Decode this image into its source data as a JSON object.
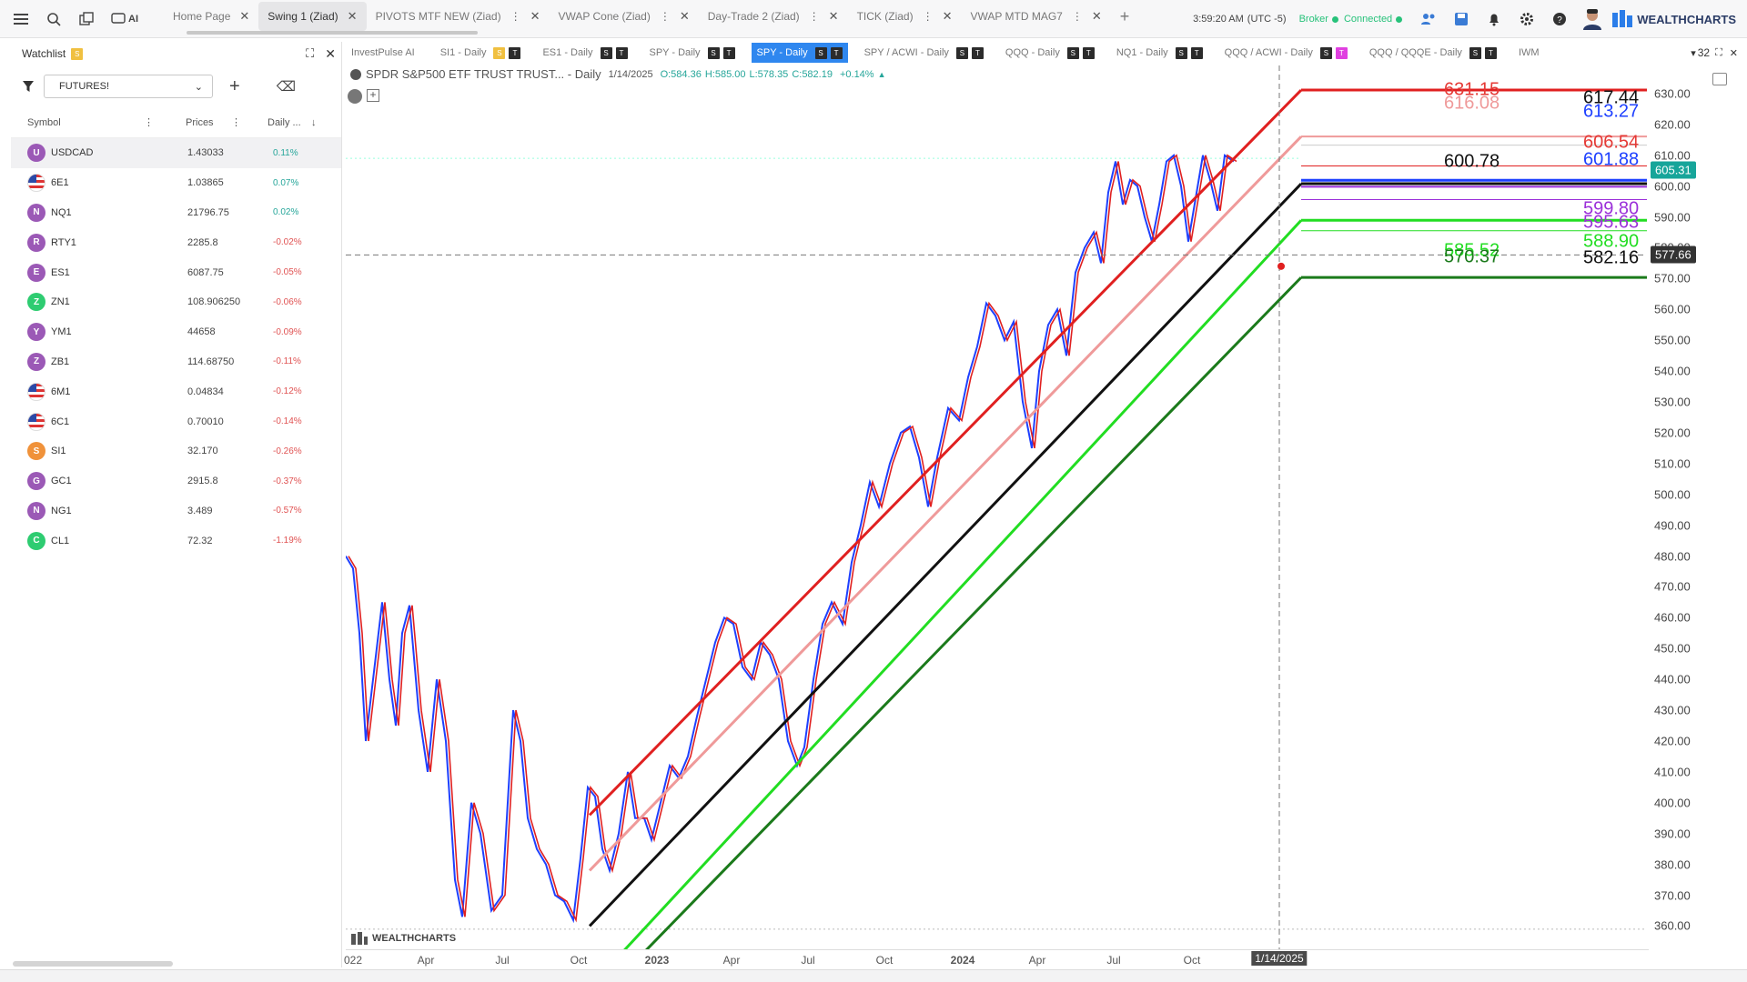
{
  "topbar": {
    "tabs": [
      {
        "label": "Home Page"
      },
      {
        "label": "Swing 1 (Ziad)"
      },
      {
        "label": "PIVOTS MTF NEW (Ziad)"
      },
      {
        "label": "VWAP Cone (Ziad)"
      },
      {
        "label": "Day-Trade 2 (Ziad)"
      },
      {
        "label": "TICK (Ziad)"
      },
      {
        "label": "VWAP MTD MAG7"
      }
    ],
    "ai_label": "AI",
    "time": "3:59:20 AM",
    "timezone": "(UTC -5)",
    "broker_label": "Broker",
    "connected_label": "Connected",
    "brand": "WEALTHCHARTS"
  },
  "watchlist": {
    "title": "Watchlist",
    "badge": "S",
    "filter_value": "FUTURES!",
    "columns": {
      "symbol": "Symbol",
      "prices": "Prices",
      "daily": "Daily ..."
    },
    "rows": [
      {
        "letter": "U",
        "color": "#9b59b6",
        "symbol": "USDCAD",
        "price": "1.43033",
        "change": "0.11%",
        "dir": "pos"
      },
      {
        "letter": "",
        "color": "flag",
        "symbol": "6E1",
        "price": "1.03865",
        "change": "0.07%",
        "dir": "pos"
      },
      {
        "letter": "N",
        "color": "#9b59b6",
        "symbol": "NQ1",
        "price": "21796.75",
        "change": "0.02%",
        "dir": "pos"
      },
      {
        "letter": "R",
        "color": "#9b59b6",
        "symbol": "RTY1",
        "price": "2285.8",
        "change": "-0.02%",
        "dir": "neg"
      },
      {
        "letter": "E",
        "color": "#9b59b6",
        "symbol": "ES1",
        "price": "6087.75",
        "change": "-0.05%",
        "dir": "neg"
      },
      {
        "letter": "Z",
        "color": "#2ecc71",
        "symbol": "ZN1",
        "price": "108.906250",
        "change": "-0.06%",
        "dir": "neg"
      },
      {
        "letter": "Y",
        "color": "#9b59b6",
        "symbol": "YM1",
        "price": "44658",
        "change": "-0.09%",
        "dir": "neg"
      },
      {
        "letter": "Z",
        "color": "#9b59b6",
        "symbol": "ZB1",
        "price": "114.68750",
        "change": "-0.11%",
        "dir": "neg"
      },
      {
        "letter": "",
        "color": "flag",
        "symbol": "6M1",
        "price": "0.04834",
        "change": "-0.12%",
        "dir": "neg"
      },
      {
        "letter": "",
        "color": "flag",
        "symbol": "6C1",
        "price": "0.70010",
        "change": "-0.14%",
        "dir": "neg"
      },
      {
        "letter": "S",
        "color": "#f0923a",
        "symbol": "SI1",
        "price": "32.170",
        "change": "-0.26%",
        "dir": "neg"
      },
      {
        "letter": "G",
        "color": "#9b59b6",
        "symbol": "GC1",
        "price": "2915.8",
        "change": "-0.37%",
        "dir": "neg"
      },
      {
        "letter": "N",
        "color": "#9b59b6",
        "symbol": "NG1",
        "price": "3.489",
        "change": "-0.57%",
        "dir": "neg"
      },
      {
        "letter": "C",
        "color": "#2ecc71",
        "symbol": "CL1",
        "price": "72.32",
        "change": "-1.19%",
        "dir": "neg"
      }
    ]
  },
  "chart_tabs": [
    {
      "label": "InvestPulse AI",
      "marks": []
    },
    {
      "label": "SI1 - Daily",
      "marks": [
        "S",
        "T"
      ]
    },
    {
      "label": "ES1 - Daily",
      "marks": [
        "S",
        "T"
      ]
    },
    {
      "label": "SPY - Daily",
      "marks": [
        "S",
        "T"
      ]
    },
    {
      "label": "SPY - Daily",
      "marks": [
        "S",
        "T"
      ],
      "active": true
    },
    {
      "label": "SPY / ACWI - Daily",
      "marks": [
        "S",
        "T"
      ]
    },
    {
      "label": "QQQ - Daily",
      "marks": [
        "S",
        "T"
      ]
    },
    {
      "label": "NQ1 - Daily",
      "marks": [
        "S",
        "T"
      ]
    },
    {
      "label": "QQQ / ACWI - Daily",
      "marks": [
        "S",
        "T"
      ]
    },
    {
      "label": "QQQ / QQQE - Daily",
      "marks": [
        "S",
        "T"
      ]
    },
    {
      "label": "IWM",
      "marks": []
    }
  ],
  "chart_tab_count": "32",
  "chart_header": {
    "title": "SPDR S&P500 ETF TRUST TRUST... - Daily",
    "date": "1/14/2025",
    "open": "O:584.36",
    "high": "H:585.00",
    "low": "L:578.35",
    "close": "C:582.19",
    "change": "+0.14%"
  },
  "watermark": "WEALTHCHARTS",
  "chart_data": {
    "type": "line",
    "x_ticks": [
      "022",
      "Apr",
      "Jul",
      "Oct",
      "2023",
      "Apr",
      "Jul",
      "Oct",
      "2024",
      "Apr",
      "Jul",
      "Oct"
    ],
    "x_marker": "1/14/2025",
    "y_ticks": [
      "630.00",
      "620.00",
      "610.00",
      "600.00",
      "590.00",
      "580.00",
      "570.00",
      "560.00",
      "550.00",
      "540.00",
      "530.00",
      "520.00",
      "510.00",
      "500.00",
      "490.00",
      "480.00",
      "470.00",
      "460.00",
      "450.00",
      "440.00",
      "430.00",
      "420.00",
      "410.00",
      "400.00",
      "390.00",
      "380.00",
      "370.00",
      "360.00"
    ],
    "ylim": [
      356,
      635
    ],
    "last_price": "605.31",
    "crosshair_price": "577.66",
    "levels": [
      {
        "value": "631.15",
        "color": "#e53935"
      },
      {
        "value": "616.08",
        "color": "#ef9a9a"
      },
      {
        "value": "617.44",
        "color": "#111111"
      },
      {
        "value": "613.27",
        "color": "#1e40ff"
      },
      {
        "value": "606.54",
        "color": "#e53935"
      },
      {
        "value": "601.88",
        "color": "#1e40ff"
      },
      {
        "value": "600.78",
        "color": "#111111"
      },
      {
        "value": "599.80",
        "color": "#9b30d9"
      },
      {
        "value": "595.63",
        "color": "#9b30d9"
      },
      {
        "value": "588.90",
        "color": "#22dd22"
      },
      {
        "value": "585.52",
        "color": "#22dd22"
      },
      {
        "value": "570.37",
        "color": "#1b7a1b"
      },
      {
        "value": "582.16",
        "color": "#111111"
      }
    ]
  }
}
